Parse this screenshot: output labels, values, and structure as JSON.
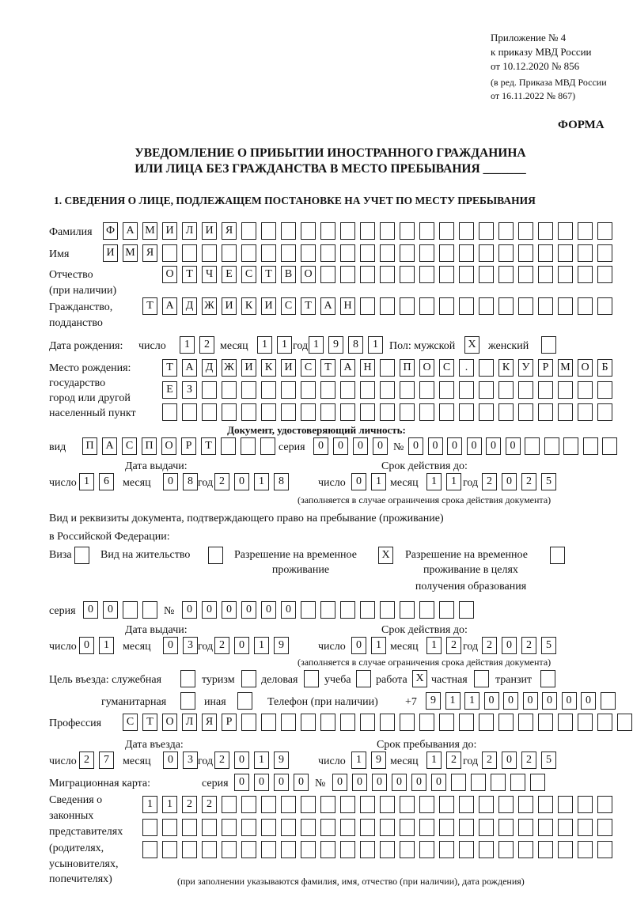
{
  "header": {
    "line1": "Приложение № 4",
    "line2": "к приказу МВД России",
    "line3": "от 10.12.2020 № 856",
    "line4": "(в ред. Приказа МВД России",
    "line5": "от 16.11.2022 № 867)",
    "forma": "ФОРМА"
  },
  "title": {
    "line1": "УВЕДОМЛЕНИЕ О ПРИБЫТИИ ИНОСТРАННОГО ГРАЖДАНИНА",
    "line2": "ИЛИ ЛИЦА БЕЗ ГРАЖДАНСТВА В МЕСТО ПРЕБЫВАНИЯ _______"
  },
  "section1": "1. СВЕДЕНИЯ О ЛИЦЕ, ПОДЛЕЖАЩЕМ ПОСТАНОВКЕ НА УЧЕТ ПО МЕСТУ ПРЕБЫВАНИЯ",
  "labels": {
    "surname": "Фамилия",
    "name": "Имя",
    "patronymic": "Отчество",
    "patronymic2": "(при наличии)",
    "citizenship": "Гражданство,",
    "citizenship2": "подданство",
    "birth_date": "Дата рождения:",
    "day": "число",
    "month": "месяц",
    "year": "год",
    "sex": "Пол: мужской",
    "female": "женский",
    "birth_place": "Место рождения:",
    "bp2": "государство",
    "bp3": "город или другой",
    "bp4": "населенный пункт",
    "id_doc": "Документ, удостоверяющий личность:",
    "kind": "вид",
    "series": "серия",
    "number": "№",
    "issue_date": "Дата выдачи:",
    "valid_until": "Срок действия до:",
    "valid_note": "(заполняется в случае ограничения срока действия документа)",
    "right_doc": "Вид и реквизиты документа, подтверждающего право на пребывание (проживание)",
    "right_doc2": "в Российской Федерации:",
    "visa": "Виза",
    "residence": "Вид на жительство",
    "trp": "Разрешение на временное",
    "trp2": "проживание",
    "trp_edu": "Разрешение на временное",
    "trp_edu2": "проживание в целях",
    "trp_edu3": "получения образования",
    "purpose": "Цель въезда: служебная",
    "tourism": "туризм",
    "business": "деловая",
    "study": "учеба",
    "work": "работа",
    "private": "частная",
    "transit": "транзит",
    "humanitarian": "гуманитарная",
    "other": "иная",
    "phone": "Телефон (при наличии)",
    "phone_prefix": "+7",
    "profession": "Профессия",
    "entry_date": "Дата въезда:",
    "stay_until": "Срок пребывания до:",
    "migration_card": "Миграционная карта:",
    "reps1": "Сведения о",
    "reps2": "законных",
    "reps3": "представителях",
    "reps4": "(родителях,",
    "reps5": "усыновителях,",
    "reps6": "попечителях)",
    "reps_note": "(при заполнении указываются фамилия, имя, отчество (при наличии), дата рождения)"
  },
  "fields": {
    "surname": [
      "Ф",
      "А",
      "М",
      "И",
      "Л",
      "И",
      "Я",
      "",
      "",
      "",
      "",
      "",
      "",
      "",
      "",
      "",
      "",
      "",
      "",
      "",
      "",
      "",
      "",
      "",
      "",
      ""
    ],
    "name": [
      "И",
      "М",
      "Я",
      "",
      "",
      "",
      "",
      "",
      "",
      "",
      "",
      "",
      "",
      "",
      "",
      "",
      "",
      "",
      "",
      "",
      "",
      "",
      "",
      "",
      "",
      ""
    ],
    "patronymic": [
      "О",
      "Т",
      "Ч",
      "Е",
      "С",
      "Т",
      "В",
      "О",
      "",
      "",
      "",
      "",
      "",
      "",
      "",
      "",
      "",
      "",
      "",
      "",
      "",
      "",
      ""
    ],
    "citizenship": [
      "Т",
      "А",
      "Д",
      "Ж",
      "И",
      "К",
      "И",
      "С",
      "Т",
      "А",
      "Н",
      "",
      "",
      "",
      "",
      "",
      "",
      "",
      "",
      "",
      "",
      "",
      "",
      ""
    ],
    "birth_day": [
      "1",
      "2"
    ],
    "birth_month": [
      "1",
      "1"
    ],
    "birth_year": [
      "1",
      "9",
      "8",
      "1"
    ],
    "sex_male": [
      "X"
    ],
    "sex_female": [
      ""
    ],
    "birth_place1": [
      "Т",
      "А",
      "Д",
      "Ж",
      "И",
      "К",
      "И",
      "С",
      "Т",
      "А",
      "Н",
      "",
      "П",
      "О",
      "С",
      ".",
      "",
      "К",
      "У",
      "Р",
      "М",
      "О",
      "Б"
    ],
    "birth_place2": [
      "Е",
      "З",
      "",
      "",
      "",
      "",
      "",
      "",
      "",
      "",
      "",
      "",
      "",
      "",
      "",
      "",
      "",
      "",
      "",
      "",
      "",
      "",
      ""
    ],
    "birth_place3": [
      "",
      "",
      "",
      "",
      "",
      "",
      "",
      "",
      "",
      "",
      "",
      "",
      "",
      "",
      "",
      "",
      "",
      "",
      "",
      "",
      "",
      "",
      ""
    ],
    "id_kind": [
      "П",
      "А",
      "С",
      "П",
      "О",
      "Р",
      "Т",
      "",
      "",
      ""
    ],
    "id_series": [
      "0",
      "0",
      "0",
      "0"
    ],
    "id_number": [
      "0",
      "0",
      "0",
      "0",
      "0",
      "0",
      "",
      "",
      "",
      "",
      ""
    ],
    "id_issue_day": [
      "1",
      "6"
    ],
    "id_issue_month": [
      "0",
      "8"
    ],
    "id_issue_year": [
      "2",
      "0",
      "1",
      "8"
    ],
    "id_valid_day": [
      "0",
      "1"
    ],
    "id_valid_month": [
      "1",
      "1"
    ],
    "id_valid_year": [
      "2",
      "0",
      "2",
      "5"
    ],
    "visa": [
      ""
    ],
    "residence": [
      ""
    ],
    "trp": [
      "X"
    ],
    "trp_edu": [
      ""
    ],
    "rd_series": [
      "0",
      "0",
      "",
      ""
    ],
    "rd_number": [
      "0",
      "0",
      "0",
      "0",
      "0",
      "0",
      "",
      "",
      "",
      "",
      "",
      "",
      "",
      "",
      ""
    ],
    "rd_issue_day": [
      "0",
      "1"
    ],
    "rd_issue_month": [
      "0",
      "3"
    ],
    "rd_issue_year": [
      "2",
      "0",
      "1",
      "9"
    ],
    "rd_valid_day": [
      "0",
      "1"
    ],
    "rd_valid_month": [
      "1",
      "2"
    ],
    "rd_valid_year": [
      "2",
      "0",
      "2",
      "5"
    ],
    "p_service": [
      ""
    ],
    "p_tourism": [
      ""
    ],
    "p_business": [
      ""
    ],
    "p_study": [
      ""
    ],
    "p_work": [
      "X"
    ],
    "p_private": [
      ""
    ],
    "p_transit": [
      ""
    ],
    "p_humanitarian": [
      ""
    ],
    "p_other": [
      ""
    ],
    "phone": [
      "9",
      "1",
      "1",
      "0",
      "0",
      "0",
      "0",
      "0",
      "0",
      ""
    ],
    "profession": [
      "С",
      "Т",
      "О",
      "Л",
      "Я",
      "Р",
      "",
      "",
      "",
      "",
      "",
      "",
      "",
      "",
      "",
      "",
      "",
      "",
      "",
      "",
      "",
      "",
      "",
      "",
      "",
      ""
    ],
    "entry_day": [
      "2",
      "7"
    ],
    "entry_month": [
      "0",
      "3"
    ],
    "entry_year": [
      "2",
      "0",
      "1",
      "9"
    ],
    "stay_day": [
      "1",
      "9"
    ],
    "stay_month": [
      "1",
      "2"
    ],
    "stay_year": [
      "2",
      "0",
      "2",
      "5"
    ],
    "mc_series": [
      "0",
      "0",
      "0",
      "0"
    ],
    "mc_number": [
      "0",
      "0",
      "0",
      "0",
      "0",
      "0",
      "",
      "",
      "",
      "",
      ""
    ],
    "reps1": [
      "1",
      "1",
      "2",
      "2",
      "",
      "",
      "",
      "",
      "",
      "",
      "",
      "",
      "",
      "",
      "",
      "",
      "",
      "",
      "",
      "",
      "",
      "",
      "",
      ""
    ],
    "reps2": [
      "",
      "",
      "",
      "",
      "",
      "",
      "",
      "",
      "",
      "",
      "",
      "",
      "",
      "",
      "",
      "",
      "",
      "",
      "",
      "",
      "",
      "",
      "",
      ""
    ],
    "reps3": [
      "",
      "",
      "",
      "",
      "",
      "",
      "",
      "",
      "",
      "",
      "",
      "",
      "",
      "",
      "",
      "",
      "",
      "",
      "",
      "",
      "",
      "",
      "",
      ""
    ]
  }
}
